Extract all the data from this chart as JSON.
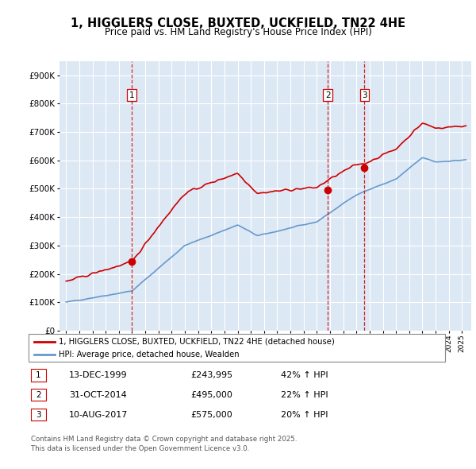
{
  "title": "1, HIGGLERS CLOSE, BUXTED, UCKFIELD, TN22 4HE",
  "subtitle": "Price paid vs. HM Land Registry's House Price Index (HPI)",
  "sale_dates": [
    "13-DEC-1999",
    "31-OCT-2014",
    "10-AUG-2017"
  ],
  "sale_prices": [
    243995,
    495000,
    575000
  ],
  "sale_pct": [
    "42% ↑ HPI",
    "22% ↑ HPI",
    "20% ↑ HPI"
  ],
  "sale_years_decimal": [
    1999.95,
    2014.83,
    2017.61
  ],
  "legend_label_red": "1, HIGGLERS CLOSE, BUXTED, UCKFIELD, TN22 4HE (detached house)",
  "legend_label_blue": "HPI: Average price, detached house, Wealden",
  "footer": "Contains HM Land Registry data © Crown copyright and database right 2025.\nThis data is licensed under the Open Government Licence v3.0.",
  "red_color": "#cc0000",
  "blue_color": "#6699cc",
  "bg_color": "#dde8f5",
  "grid_color": "#ffffff",
  "ylim": [
    0,
    950000
  ],
  "xlim_start": 1994.5,
  "xlim_end": 2025.7,
  "table_data": [
    [
      "1",
      "13-DEC-1999",
      "£243,995",
      "42% ↑ HPI"
    ],
    [
      "2",
      "31-OCT-2014",
      "£495,000",
      "22% ↑ HPI"
    ],
    [
      "3",
      "10-AUG-2017",
      "£575,000",
      "20% ↑ HPI"
    ]
  ]
}
